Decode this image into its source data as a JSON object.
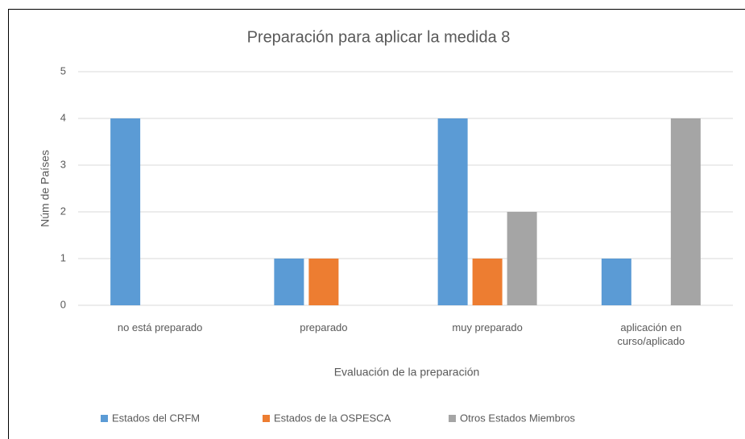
{
  "chart_data": {
    "type": "bar",
    "title": "Preparación para aplicar la medida 8",
    "x_label": "Evaluación de la preparación",
    "y_label": "Núm de Países",
    "categories": [
      "no está preparado",
      "preparado",
      "muy preparado",
      "aplicación en curso/aplicado"
    ],
    "series": [
      {
        "name": "Estados del CRFM",
        "color": "#5b9bd5",
        "values": [
          4,
          1,
          4,
          1
        ]
      },
      {
        "name": "Estados de la OSPESCA",
        "color": "#ed7d31",
        "values": [
          0,
          1,
          1,
          0
        ]
      },
      {
        "name": "Otros Estados Miembros",
        "color": "#a5a5a5",
        "values": [
          0,
          0,
          2,
          4
        ]
      }
    ],
    "ylim": [
      0,
      5
    ],
    "yticks": [
      0,
      1,
      2,
      3,
      4,
      5
    ],
    "grid": true,
    "legend": "bottom"
  }
}
